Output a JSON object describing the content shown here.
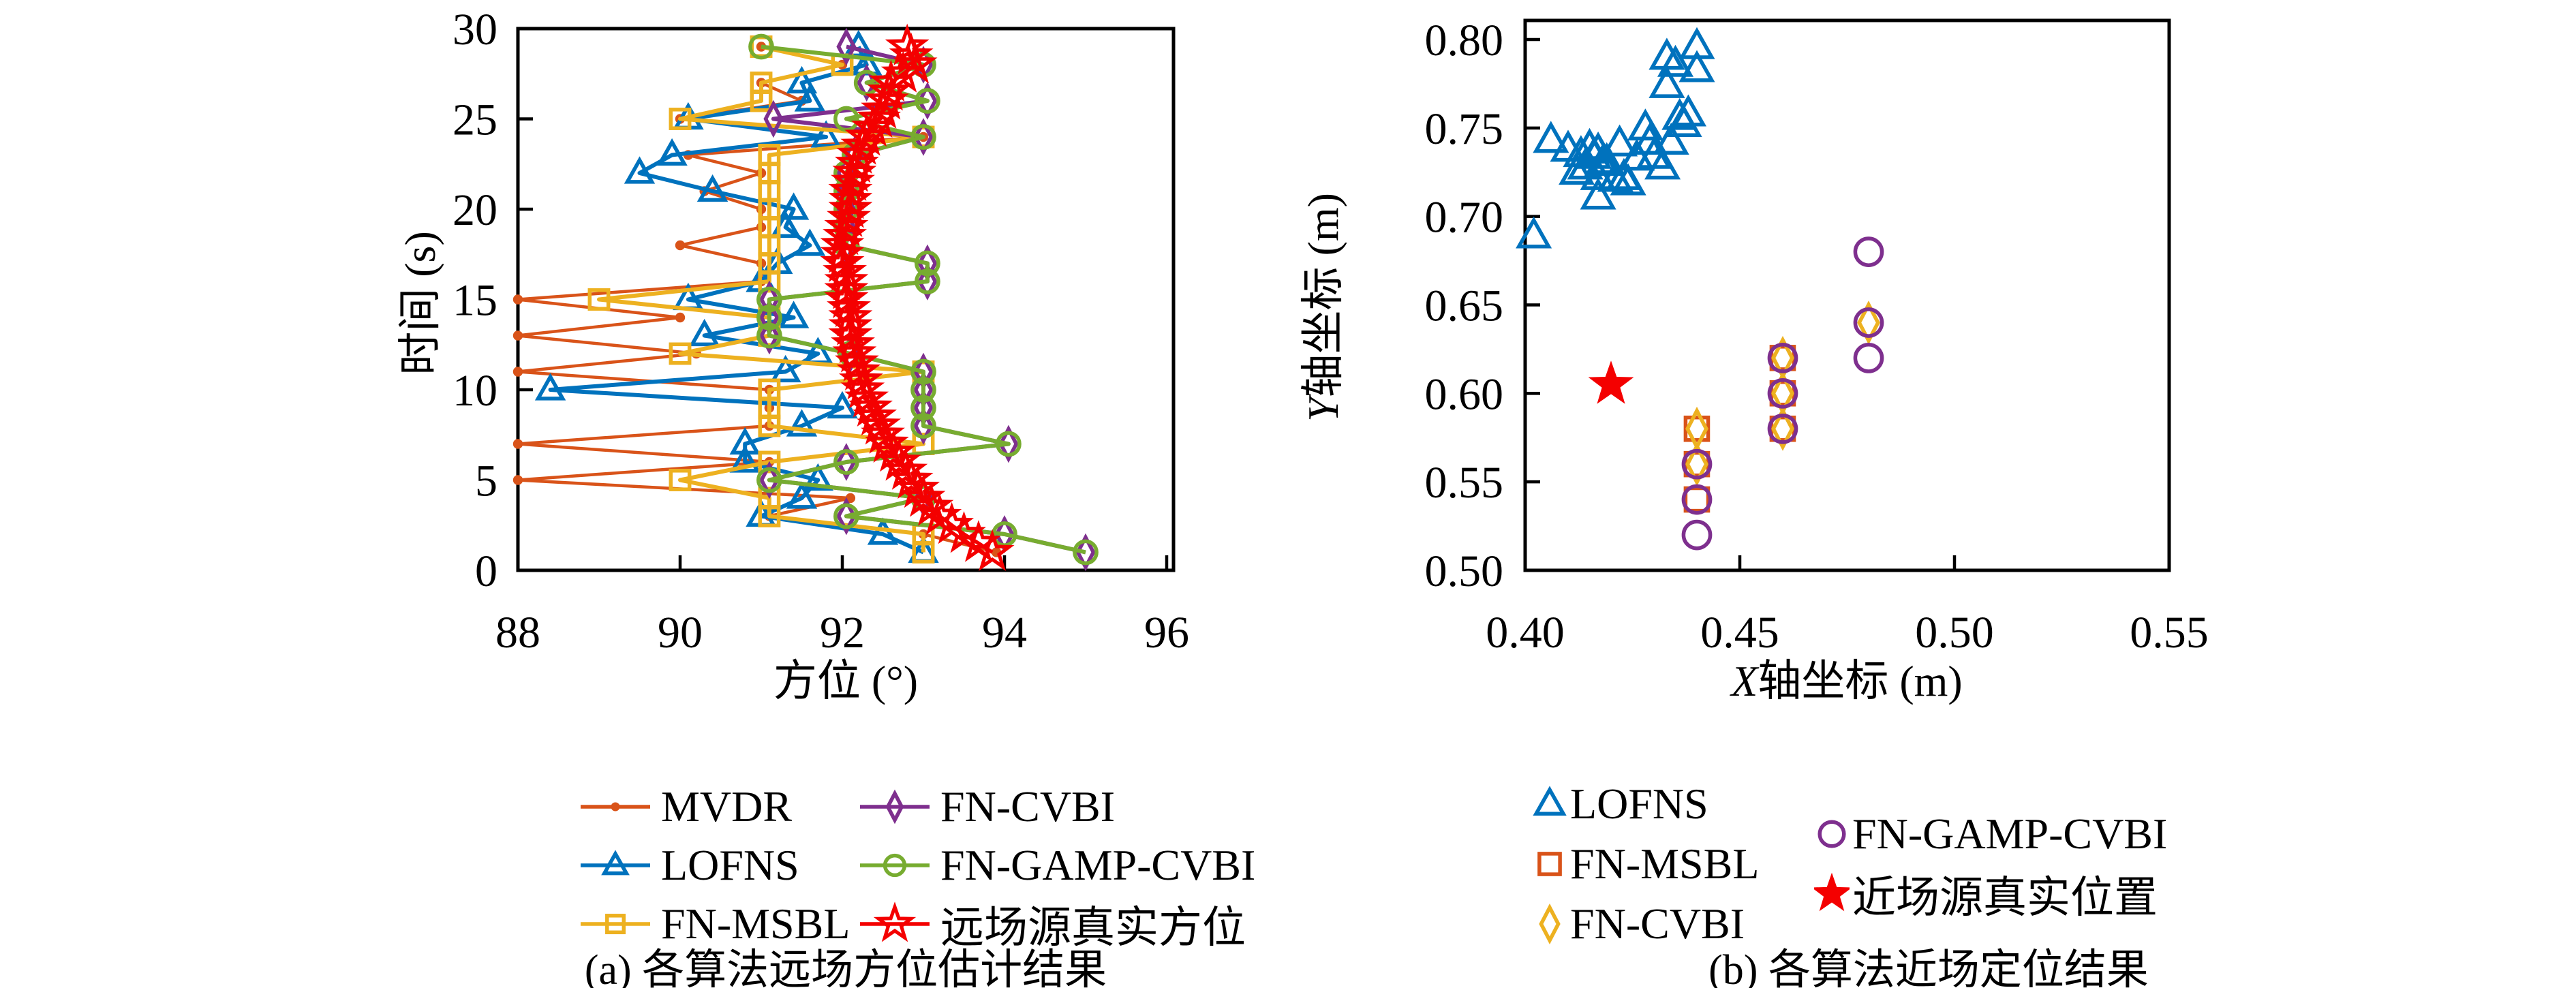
{
  "colors": {
    "mvdr_orange": "#D95319",
    "lofns_blue": "#0072BD",
    "msbl_yellow": "#EDB120",
    "cvbi_purple": "#7E2F8E",
    "gamp_green": "#77AC30",
    "true_red": "#F40000",
    "axis_black": "#000000",
    "background": "#ffffff"
  },
  "chart_data": [
    {
      "id": "a",
      "type": "line",
      "xlabel": "方位 (°)",
      "ylabel": "时间 (s)",
      "xlim": [
        88,
        96
      ],
      "ylim": [
        0,
        30
      ],
      "xticks": [
        88,
        90,
        92,
        94,
        96
      ],
      "xtick_labels": [
        "88",
        "90",
        "92",
        "94",
        "96"
      ],
      "yticks": [
        0,
        5,
        10,
        15,
        20,
        25,
        30
      ],
      "ytick_labels": [
        "0",
        "5",
        "10",
        "15",
        "20",
        "25",
        "30"
      ],
      "grid": false,
      "legend_position": "below",
      "caption": "(a) 各算法远场方位估计结果",
      "time": [
        1,
        2,
        3,
        4,
        5,
        6,
        7,
        8,
        9,
        10,
        11,
        12,
        13,
        14,
        15,
        16,
        17,
        18,
        19,
        20,
        21,
        22,
        23,
        24,
        25,
        26,
        27,
        28,
        29
      ],
      "series": [
        {
          "name": "MVDR",
          "slug": "mvdr",
          "marker": "dot",
          "color": "#D95319",
          "line": true,
          "t0": 1,
          "dt": 1,
          "values": [
            93.9,
            93.0,
            91.1,
            92.1,
            88.0,
            91.1,
            88.0,
            91.1,
            91.1,
            91.1,
            88.0,
            90.2,
            88.0,
            90.0,
            88.0,
            91.0,
            91.0,
            90.0,
            91.0,
            91.0,
            90.3,
            91.0,
            90.1,
            93.0,
            90.0,
            91.5,
            91.0,
            92.0,
            91.0
          ]
        },
        {
          "name": "LOFNS",
          "slug": "lofns",
          "marker": "triangle",
          "color": "#0072BD",
          "line": true,
          "t0": 1,
          "dt": 1,
          "values": [
            93.0,
            92.5,
            91.0,
            91.5,
            91.7,
            90.8,
            90.8,
            91.5,
            92.0,
            88.4,
            91.3,
            91.7,
            90.3,
            91.4,
            90.1,
            91.0,
            91.2,
            91.6,
            91.3,
            91.4,
            90.4,
            89.5,
            89.9,
            91.8,
            90.1,
            91.6,
            91.5,
            92.3,
            92.2
          ]
        },
        {
          "name": "FN-MSBL",
          "slug": "fn-msbl",
          "marker": "square",
          "color": "#EDB120",
          "line": true,
          "t0": 1,
          "dt": 1,
          "values": [
            93.0,
            93.0,
            91.1,
            91.1,
            90.0,
            91.1,
            93.0,
            91.1,
            91.1,
            91.1,
            93.0,
            90.0,
            91.1,
            91.1,
            89.0,
            91.1,
            91.1,
            91.1,
            91.1,
            91.1,
            91.1,
            91.1,
            91.1,
            93.0,
            90.0,
            91.0,
            91.0,
            92.0,
            91.0
          ]
        },
        {
          "name": "FN-CVBI",
          "slug": "fn-cvbi",
          "marker": "diamond",
          "color": "#7E2F8E",
          "line": true,
          "t0": 1,
          "dt": 1,
          "values": [
            95.0,
            94.0,
            92.05,
            93.0,
            91.1,
            92.05,
            94.05,
            93.0,
            93.0,
            93.0,
            93.0,
            92.1,
            91.1,
            91.1,
            91.1,
            93.05,
            93.05,
            92.05,
            92.05,
            92.05,
            92.05,
            92.05,
            92.15,
            93.0,
            91.15,
            93.05,
            92.3,
            93.0,
            92.05
          ]
        },
        {
          "name": "FN-GAMP-CVBI",
          "slug": "fn-gamp-cvbi",
          "marker": "circle",
          "color": "#77AC30",
          "line": true,
          "t0": 1,
          "dt": 1,
          "values": [
            95.0,
            94.0,
            92.05,
            93.0,
            91.1,
            92.05,
            94.05,
            93.0,
            93.0,
            93.0,
            93.0,
            92.1,
            91.1,
            91.1,
            91.1,
            93.05,
            93.05,
            92.05,
            92.05,
            92.05,
            92.05,
            92.05,
            92.15,
            93.0,
            92.05,
            93.05,
            92.3,
            93.0,
            91.0
          ]
        },
        {
          "name": "远场源真实方位",
          "slug": "true-azimuth",
          "marker": "star",
          "color": "#F40000",
          "line": true,
          "t0": 1,
          "dt": 0.5,
          "values": [
            93.85,
            93.68,
            93.5,
            93.35,
            93.2,
            93.1,
            93.0,
            92.93,
            92.85,
            92.78,
            92.7,
            92.63,
            92.55,
            92.5,
            92.45,
            92.4,
            92.35,
            92.3,
            92.25,
            92.23,
            92.2,
            92.18,
            92.15,
            92.13,
            92.1,
            92.1,
            92.1,
            92.08,
            92.05,
            92.05,
            92.05,
            92.03,
            92.0,
            92.0,
            92.0,
            92.03,
            92.05,
            92.08,
            92.1,
            92.1,
            92.1,
            92.13,
            92.15,
            92.18,
            92.2,
            92.25,
            92.3,
            92.38,
            92.45,
            92.5,
            92.55,
            92.58,
            92.6,
            92.75,
            92.9,
            92.85,
            92.8
          ]
        }
      ],
      "legend_columns": [
        [
          0,
          1,
          2
        ],
        [
          3,
          4,
          5
        ]
      ]
    },
    {
      "id": "b",
      "type": "scatter",
      "xlabel": "X轴坐标 (m)",
      "xlabel_prefix": "X",
      "xlabel_rest": "轴坐标 (m)",
      "ylabel": "Y轴坐标 (m)",
      "ylabel_prefix": "Y",
      "ylabel_rest": "轴坐标 (m)",
      "xlim": [
        0.4,
        0.55
      ],
      "ylim": [
        0.5,
        0.8
      ],
      "xticks": [
        0.4,
        0.45,
        0.5,
        0.55
      ],
      "xtick_labels": [
        "0.40",
        "0.45",
        "0.50",
        "0.55"
      ],
      "yticks": [
        0.5,
        0.55,
        0.6,
        0.65,
        0.7,
        0.75,
        0.8
      ],
      "ytick_labels": [
        "0.50",
        "0.55",
        "0.60",
        "0.65",
        "0.70",
        "0.75",
        "0.80"
      ],
      "grid": false,
      "legend_position": "below",
      "caption": "(b) 各算法近场定位结果",
      "series": [
        {
          "name": "LOFNS",
          "slug": "lofns",
          "marker": "triangle",
          "color": "#0072BD",
          "points": [
            [
              0.402,
              0.689
            ],
            [
              0.406,
              0.743
            ],
            [
              0.41,
              0.738
            ],
            [
              0.412,
              0.725
            ],
            [
              0.413,
              0.735
            ],
            [
              0.414,
              0.728
            ],
            [
              0.415,
              0.739
            ],
            [
              0.416,
              0.734
            ],
            [
              0.417,
              0.737
            ],
            [
              0.417,
              0.722
            ],
            [
              0.417,
              0.711
            ],
            [
              0.418,
              0.73
            ],
            [
              0.419,
              0.731
            ],
            [
              0.421,
              0.721
            ],
            [
              0.422,
              0.741
            ],
            [
              0.423,
              0.722
            ],
            [
              0.424,
              0.719
            ],
            [
              0.426,
              0.733
            ],
            [
              0.428,
              0.75
            ],
            [
              0.429,
              0.742
            ],
            [
              0.43,
              0.734
            ],
            [
              0.432,
              0.728
            ],
            [
              0.433,
              0.79
            ],
            [
              0.433,
              0.774
            ],
            [
              0.434,
              0.742
            ],
            [
              0.435,
              0.786
            ],
            [
              0.436,
              0.756
            ],
            [
              0.437,
              0.752
            ],
            [
              0.438,
              0.758
            ],
            [
              0.44,
              0.796
            ],
            [
              0.44,
              0.783
            ]
          ]
        },
        {
          "name": "FN-MSBL",
          "slug": "fn-msbl",
          "marker": "square",
          "color": "#D95319",
          "points": [
            [
              0.44,
              0.58
            ],
            [
              0.44,
              0.56
            ],
            [
              0.44,
              0.54
            ],
            [
              0.46,
              0.62
            ],
            [
              0.46,
              0.6
            ],
            [
              0.46,
              0.58
            ]
          ]
        },
        {
          "name": "FN-CVBI",
          "slug": "fn-cvbi",
          "marker": "diamond",
          "color": "#EDB120",
          "points": [
            [
              0.44,
              0.58
            ],
            [
              0.44,
              0.56
            ],
            [
              0.46,
              0.62
            ],
            [
              0.46,
              0.6
            ],
            [
              0.46,
              0.58
            ],
            [
              0.48,
              0.64
            ]
          ]
        },
        {
          "name": "FN-GAMP-CVBI",
          "slug": "fn-gamp-cvbi",
          "marker": "circle",
          "color": "#7E2F8E",
          "points": [
            [
              0.44,
              0.56
            ],
            [
              0.44,
              0.54
            ],
            [
              0.44,
              0.52
            ],
            [
              0.46,
              0.62
            ],
            [
              0.46,
              0.6
            ],
            [
              0.46,
              0.58
            ],
            [
              0.48,
              0.68
            ],
            [
              0.48,
              0.64
            ],
            [
              0.48,
              0.62
            ]
          ]
        },
        {
          "name": "近场源真实位置",
          "slug": "true-position",
          "marker": "star-filled",
          "color": "#F40000",
          "points": [
            [
              0.42,
              0.605
            ]
          ]
        }
      ],
      "legend_columns": [
        [
          0,
          1,
          2
        ],
        [
          3,
          4
        ]
      ]
    }
  ]
}
